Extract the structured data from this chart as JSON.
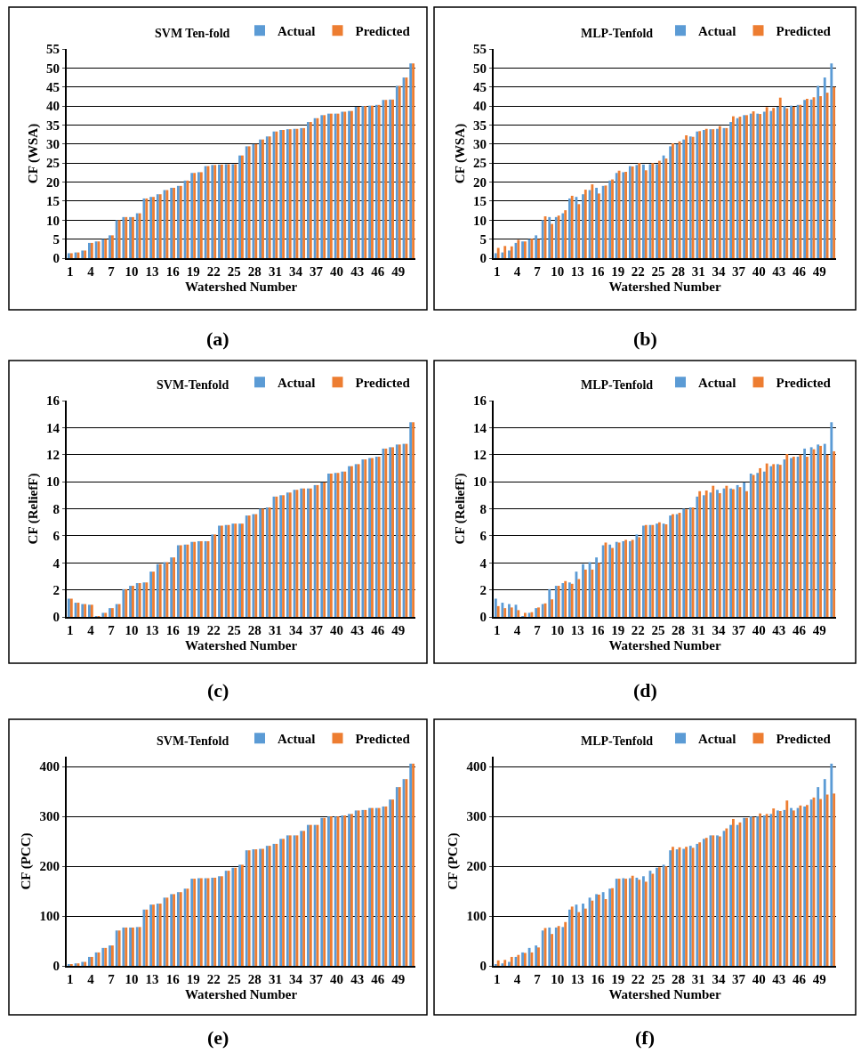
{
  "chart_data": [
    {
      "type": "bar",
      "title": "SVM Ten-fold",
      "xlabel": "Watershed Number",
      "ylabel": "CF (WSA)",
      "annotations": [
        "(a)"
      ],
      "categories": [
        "1",
        null,
        null,
        "4",
        null,
        null,
        "7",
        null,
        null,
        "10",
        null,
        null,
        "13",
        null,
        null,
        "16",
        null,
        null,
        "19",
        null,
        null,
        "22",
        null,
        null,
        "25",
        null,
        null,
        "28",
        null,
        null,
        "31",
        null,
        null,
        "34",
        null,
        null,
        "37",
        null,
        null,
        "40",
        null,
        null,
        "43",
        null,
        null,
        "46",
        null,
        null,
        "49",
        null,
        null
      ],
      "series": [
        {
          "name": "Actual",
          "color": "#5b9bd5",
          "values": [
            1.3,
            1.5,
            2.0,
            4.0,
            4.4,
            5.0,
            6.0,
            10.0,
            10.8,
            10.8,
            11.8,
            15.7,
            16.1,
            16.8,
            17.9,
            18.5,
            19.0,
            20.4,
            22.4,
            22.6,
            24.2,
            24.5,
            24.6,
            24.7,
            24.7,
            27.0,
            29.4,
            30.0,
            31.2,
            32.0,
            33.3,
            33.7,
            33.9,
            34.0,
            34.2,
            35.8,
            36.8,
            37.6,
            38.0,
            38.0,
            38.5,
            38.7,
            39.8,
            40.0,
            40.1,
            40.3,
            41.6,
            41.7,
            45.3,
            47.5,
            51.2
          ]
        },
        {
          "name": "Predicted",
          "color": "#ed7d31",
          "values": [
            1.3,
            1.5,
            2.0,
            4.0,
            4.4,
            5.0,
            6.0,
            10.0,
            10.8,
            10.8,
            11.8,
            15.7,
            16.1,
            16.8,
            17.9,
            18.5,
            19.0,
            20.4,
            22.4,
            22.6,
            24.2,
            24.5,
            24.6,
            24.7,
            24.7,
            27.0,
            29.4,
            30.0,
            31.2,
            32.0,
            33.3,
            33.7,
            33.9,
            34.0,
            34.2,
            35.8,
            36.8,
            37.6,
            38.0,
            38.0,
            38.5,
            38.7,
            39.8,
            40.0,
            40.1,
            40.3,
            41.6,
            41.7,
            45.3,
            47.5,
            51.2
          ]
        }
      ],
      "ylim": [
        0,
        55
      ],
      "yticks": [
        0,
        5,
        10,
        15,
        20,
        25,
        30,
        35,
        40,
        45,
        50,
        55
      ],
      "grid": "y",
      "legend": "top right"
    },
    {
      "type": "bar",
      "title": "MLP-Tenfold",
      "xlabel": "Watershed Number",
      "ylabel": "CF (WSA)",
      "annotations": [
        "(b)"
      ],
      "categories": [
        "1",
        null,
        null,
        "4",
        null,
        null,
        "7",
        null,
        null,
        "10",
        null,
        null,
        "13",
        null,
        null,
        "16",
        null,
        null,
        "19",
        null,
        null,
        "22",
        null,
        null,
        "25",
        null,
        null,
        "28",
        null,
        null,
        "31",
        null,
        null,
        "34",
        null,
        null,
        "37",
        null,
        null,
        "40",
        null,
        null,
        "43",
        null,
        null,
        "46",
        null,
        null,
        "49",
        null,
        null
      ],
      "series": [
        {
          "name": "Actual",
          "color": "#5b9bd5",
          "values": [
            1.3,
            1.5,
            2.0,
            4.0,
            4.4,
            5.0,
            6.0,
            10.0,
            10.8,
            10.8,
            11.8,
            15.7,
            16.1,
            16.8,
            17.9,
            18.5,
            19.0,
            20.4,
            22.4,
            22.6,
            24.2,
            24.5,
            24.6,
            24.7,
            24.7,
            27.0,
            29.4,
            30.0,
            31.2,
            32.0,
            33.3,
            33.7,
            33.9,
            34.0,
            34.2,
            35.8,
            36.8,
            37.6,
            38.0,
            38.0,
            38.5,
            38.7,
            39.8,
            40.0,
            40.1,
            40.3,
            41.6,
            41.7,
            45.3,
            47.5,
            51.2
          ]
        },
        {
          "name": "Predicted",
          "color": "#ed7d31",
          "values": [
            2.7,
            3.2,
            3.1,
            4.8,
            4.4,
            5.1,
            5.0,
            11.0,
            9.0,
            11.2,
            12.6,
            16.4,
            14.2,
            18.0,
            19.4,
            17.0,
            19.1,
            20.7,
            23.0,
            22.7,
            24.1,
            25.0,
            23.1,
            25.0,
            25.6,
            26.2,
            30.2,
            30.7,
            32.3,
            31.9,
            33.4,
            34.0,
            33.9,
            34.7,
            34.2,
            37.3,
            37.2,
            37.6,
            38.6,
            37.9,
            39.7,
            39.5,
            42.2,
            39.4,
            39.8,
            40.3,
            41.9,
            42.3,
            42.6,
            43.5,
            45.0
          ]
        }
      ],
      "ylim": [
        0,
        55
      ],
      "yticks": [
        0,
        5,
        10,
        15,
        20,
        25,
        30,
        35,
        40,
        45,
        50,
        55
      ],
      "grid": "y",
      "legend": "top right"
    },
    {
      "type": "bar",
      "title": "SVM-Tenfold",
      "xlabel": "Watershed Number",
      "ylabel": "CF (ReliefF)",
      "annotations": [
        "(c)"
      ],
      "categories": [
        "1",
        null,
        null,
        "4",
        null,
        null,
        "7",
        null,
        null,
        "10",
        null,
        null,
        "13",
        null,
        null,
        "16",
        null,
        null,
        "19",
        null,
        null,
        "22",
        null,
        null,
        "25",
        null,
        null,
        "28",
        null,
        null,
        "31",
        null,
        null,
        "34",
        null,
        null,
        "37",
        null,
        null,
        "40",
        null,
        null,
        "43",
        null,
        null,
        "46",
        null,
        null,
        "49",
        null,
        null
      ],
      "series": [
        {
          "name": "Actual",
          "color": "#5b9bd5",
          "values": [
            1.35,
            1.05,
            0.95,
            0.9,
            0.05,
            0.3,
            0.65,
            0.95,
            2.05,
            2.3,
            2.5,
            2.55,
            3.35,
            3.9,
            4.05,
            4.4,
            5.3,
            5.35,
            5.55,
            5.6,
            5.6,
            6.1,
            6.75,
            6.8,
            6.9,
            6.9,
            7.5,
            7.6,
            8.0,
            8.1,
            8.9,
            9.0,
            9.2,
            9.4,
            9.5,
            9.5,
            9.75,
            9.95,
            10.6,
            10.65,
            10.75,
            11.15,
            11.3,
            11.65,
            11.75,
            11.85,
            12.45,
            12.55,
            12.75,
            12.8,
            14.4
          ]
        },
        {
          "name": "Predicted",
          "color": "#ed7d31",
          "values": [
            1.35,
            1.05,
            0.95,
            0.9,
            0.05,
            0.3,
            0.65,
            0.95,
            2.05,
            2.3,
            2.5,
            2.55,
            3.35,
            3.9,
            4.05,
            4.4,
            5.3,
            5.35,
            5.55,
            5.6,
            5.6,
            6.1,
            6.75,
            6.8,
            6.9,
            6.9,
            7.5,
            7.6,
            8.0,
            8.1,
            8.9,
            9.0,
            9.2,
            9.4,
            9.5,
            9.5,
            9.75,
            9.95,
            10.6,
            10.65,
            10.75,
            11.15,
            11.3,
            11.65,
            11.75,
            11.85,
            12.45,
            12.55,
            12.75,
            12.8,
            14.4
          ]
        }
      ],
      "ylim": [
        0,
        16
      ],
      "yticks": [
        0,
        2,
        4,
        6,
        8,
        10,
        12,
        14,
        16
      ],
      "grid": "y",
      "legend": "top right"
    },
    {
      "type": "bar",
      "title": "MLP-Tenfold",
      "xlabel": "Watershed Number",
      "ylabel": "CF (ReliefF)",
      "annotations": [
        "(d)"
      ],
      "categories": [
        "1",
        null,
        null,
        "4",
        null,
        null,
        "7",
        null,
        null,
        "10",
        null,
        null,
        "13",
        null,
        null,
        "16",
        null,
        null,
        "19",
        null,
        null,
        "22",
        null,
        null,
        "25",
        null,
        null,
        "28",
        null,
        null,
        "31",
        null,
        null,
        "34",
        null,
        null,
        "37",
        null,
        null,
        "40",
        null,
        null,
        "43",
        null,
        null,
        "46",
        null,
        null,
        "49",
        null,
        null
      ],
      "series": [
        {
          "name": "Actual",
          "color": "#5b9bd5",
          "values": [
            1.35,
            1.05,
            0.95,
            0.9,
            0.05,
            0.3,
            0.65,
            0.95,
            2.05,
            2.3,
            2.5,
            2.55,
            3.35,
            3.9,
            4.05,
            4.4,
            5.3,
            5.35,
            5.55,
            5.6,
            5.6,
            6.1,
            6.75,
            6.8,
            6.9,
            6.9,
            7.5,
            7.6,
            8.0,
            8.1,
            8.9,
            9.0,
            9.2,
            9.4,
            9.5,
            9.5,
            9.75,
            9.95,
            10.6,
            10.65,
            10.75,
            11.15,
            11.3,
            11.65,
            11.75,
            11.85,
            12.45,
            12.55,
            12.75,
            12.8,
            14.4
          ]
        },
        {
          "name": "Predicted",
          "color": "#ed7d31",
          "values": [
            0.8,
            0.65,
            0.7,
            0.5,
            0.3,
            0.35,
            0.7,
            1.0,
            1.3,
            2.3,
            2.65,
            2.45,
            2.8,
            3.5,
            3.5,
            4.0,
            5.5,
            5.1,
            5.5,
            5.7,
            5.7,
            5.9,
            6.8,
            6.8,
            7.0,
            6.85,
            7.6,
            7.7,
            7.95,
            8.1,
            9.3,
            9.35,
            9.7,
            9.15,
            9.7,
            9.45,
            9.6,
            9.3,
            10.5,
            11.0,
            11.35,
            11.3,
            11.25,
            12.05,
            11.85,
            12.0,
            11.85,
            12.4,
            12.65,
            12.0,
            12.25
          ]
        }
      ],
      "ylim": [
        0,
        16
      ],
      "yticks": [
        0,
        2,
        4,
        6,
        8,
        10,
        12,
        14,
        16
      ],
      "grid": "y",
      "legend": "top right"
    },
    {
      "type": "bar",
      "title": "SVM-Tenfold",
      "xlabel": "Watershed Number",
      "ylabel": "CF (PCC)",
      "annotations": [
        "(e)"
      ],
      "categories": [
        "1",
        null,
        null,
        "4",
        null,
        null,
        "7",
        null,
        null,
        "10",
        null,
        null,
        "13",
        null,
        null,
        "16",
        null,
        null,
        "19",
        null,
        null,
        "22",
        null,
        null,
        "25",
        null,
        null,
        "28",
        null,
        null,
        "31",
        null,
        null,
        "34",
        null,
        null,
        "37",
        null,
        null,
        "40",
        null,
        null,
        "43",
        null,
        null,
        "46",
        null,
        null,
        "49",
        null,
        null
      ],
      "series": [
        {
          "name": "Actual",
          "color": "#5b9bd5",
          "values": [
            3,
            5,
            8,
            18,
            27,
            36,
            41,
            71,
            77,
            77,
            78,
            113,
            123,
            125,
            137,
            144,
            148,
            155,
            175,
            176,
            176,
            177,
            180,
            191,
            197,
            203,
            232,
            234,
            235,
            241,
            245,
            255,
            262,
            262,
            271,
            283,
            283,
            297,
            300,
            300,
            302,
            305,
            312,
            313,
            317,
            317,
            320,
            334,
            359,
            375,
            406
          ]
        },
        {
          "name": "Predicted",
          "color": "#ed7d31",
          "values": [
            3,
            5,
            8,
            18,
            27,
            36,
            41,
            71,
            77,
            77,
            78,
            113,
            123,
            125,
            137,
            144,
            148,
            155,
            175,
            176,
            176,
            177,
            180,
            191,
            197,
            203,
            232,
            234,
            235,
            241,
            245,
            255,
            262,
            262,
            271,
            283,
            283,
            297,
            300,
            300,
            302,
            305,
            312,
            313,
            317,
            317,
            320,
            334,
            359,
            375,
            406
          ]
        }
      ],
      "ylim": [
        0,
        420
      ],
      "yticks": [
        0,
        100,
        200,
        300,
        400
      ],
      "grid": "y",
      "legend": "top right"
    },
    {
      "type": "bar",
      "title": "MLP-Tenfold",
      "xlabel": "Watershed Number",
      "ylabel": "CF (PCC)",
      "annotations": [
        "(f)"
      ],
      "categories": [
        "1",
        null,
        null,
        "4",
        null,
        null,
        "7",
        null,
        null,
        "10",
        null,
        null,
        "13",
        null,
        null,
        "16",
        null,
        null,
        "19",
        null,
        null,
        "22",
        null,
        null,
        "25",
        null,
        null,
        "28",
        null,
        null,
        "31",
        null,
        null,
        "34",
        null,
        null,
        "37",
        null,
        null,
        "40",
        null,
        null,
        "43",
        null,
        null,
        "46",
        null,
        null,
        "49",
        null,
        null
      ],
      "series": [
        {
          "name": "Actual",
          "color": "#5b9bd5",
          "values": [
            3,
            5,
            8,
            18,
            27,
            36,
            41,
            71,
            77,
            77,
            78,
            113,
            123,
            125,
            137,
            144,
            148,
            155,
            175,
            176,
            176,
            177,
            180,
            191,
            197,
            203,
            232,
            234,
            235,
            241,
            245,
            255,
            262,
            262,
            271,
            283,
            283,
            297,
            300,
            300,
            302,
            305,
            312,
            313,
            317,
            317,
            320,
            334,
            359,
            375,
            406
          ]
        },
        {
          "name": "Predicted",
          "color": "#ed7d31",
          "values": [
            11,
            12,
            18,
            22,
            26,
            27,
            37,
            76,
            64,
            80,
            88,
            119,
            108,
            115,
            131,
            143,
            134,
            156,
            175,
            175,
            181,
            173,
            169,
            185,
            198,
            200,
            239,
            238,
            239,
            237,
            248,
            257,
            262,
            260,
            276,
            295,
            288,
            297,
            299,
            306,
            305,
            316,
            311,
            332,
            312,
            322,
            323,
            338,
            335,
            344,
            346
          ]
        }
      ],
      "ylim": [
        0,
        420
      ],
      "yticks": [
        0,
        100,
        200,
        300,
        400
      ],
      "grid": "y",
      "legend": "top right"
    }
  ]
}
